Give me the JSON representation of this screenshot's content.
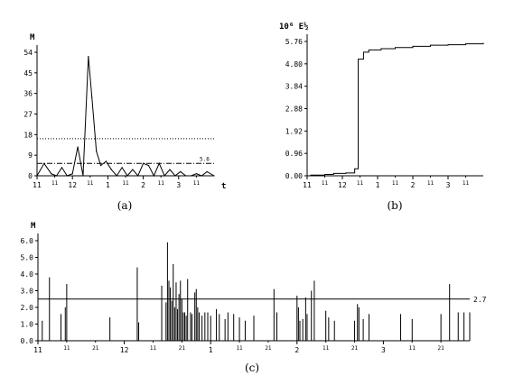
{
  "chart_data": [
    {
      "type": "line",
      "panel_label": "(a)",
      "ylabel": "M",
      "xlabel": "t",
      "ylim": [
        0,
        60
      ],
      "y_ticks": [
        "0",
        "9",
        "18",
        "27",
        "36",
        "45",
        "54"
      ],
      "x_ticks": [
        {
          "label": "11",
          "big": true
        },
        {
          "label": "11",
          "big": false
        },
        {
          "label": "12",
          "big": true
        },
        {
          "label": "11",
          "big": false
        },
        {
          "label": "1",
          "big": true
        },
        {
          "label": "11",
          "big": false
        },
        {
          "label": "2",
          "big": true
        },
        {
          "label": "11",
          "big": false
        },
        {
          "label": "3",
          "big": true
        },
        {
          "label": "11",
          "big": false
        }
      ],
      "xlim": [
        0,
        10
      ],
      "series": [
        {
          "x": [
            0,
            0.4,
            0.8,
            1.1,
            1.4,
            1.7,
            2.0,
            2.3,
            2.6,
            2.9,
            3.1,
            3.35,
            3.6,
            3.9,
            4.2,
            4.5,
            4.8,
            5.1,
            5.4,
            5.7,
            6.0,
            6.3,
            6.6,
            6.9,
            7.2,
            7.5,
            7.8,
            8.1,
            8.4,
            8.7,
            9.0,
            9.3,
            9.6,
            10.0
          ],
          "y": [
            0,
            6,
            1,
            0,
            4,
            0,
            1,
            14,
            0,
            58,
            38,
            12,
            5,
            7,
            3,
            0,
            4,
            0,
            3,
            0,
            6,
            5,
            0,
            6,
            0,
            3,
            0,
            2,
            0,
            0,
            1,
            0,
            2,
            0
          ]
        }
      ],
      "ref_lines": [
        {
          "y": 18,
          "style": "dotted"
        },
        {
          "y": 6,
          "style": "dashdot",
          "label": "5.6"
        }
      ]
    },
    {
      "type": "line",
      "panel_label": "(b)",
      "ylabel": "10⁶ E½",
      "ylim": [
        0,
        5.76
      ],
      "y_ticks": [
        "0.00",
        "0.96",
        "1.92",
        "2.88",
        "3.84",
        "4.80",
        "5.76"
      ],
      "x_ticks": [
        {
          "label": "11",
          "big": true
        },
        {
          "label": "11",
          "big": false
        },
        {
          "label": "12",
          "big": true
        },
        {
          "label": "11",
          "big": false
        },
        {
          "label": "1",
          "big": true
        },
        {
          "label": "11",
          "big": false
        },
        {
          "label": "2",
          "big": true
        },
        {
          "label": "11",
          "big": false
        },
        {
          "label": "3",
          "big": true
        },
        {
          "label": "11",
          "big": false
        }
      ],
      "xlim": [
        0,
        10
      ],
      "series": [
        {
          "step": true,
          "x": [
            0,
            0.2,
            1.0,
            1.5,
            2.2,
            2.7,
            2.9,
            3.2,
            3.5,
            4.2,
            5.0,
            6.0,
            7.0,
            8.0,
            9.0,
            10.0
          ],
          "y": [
            0,
            0.03,
            0.06,
            0.1,
            0.12,
            0.3,
            5.0,
            5.3,
            5.4,
            5.45,
            5.5,
            5.55,
            5.6,
            5.62,
            5.66,
            5.7
          ]
        }
      ]
    },
    {
      "type": "bar",
      "panel_label": "(c)",
      "ylabel": "M",
      "ylim": [
        0,
        6.0
      ],
      "y_ticks": [
        "0.0",
        "1.0",
        "2.0",
        "3.0",
        "4.0",
        "5.0",
        "6.0"
      ],
      "x_ticks": [
        {
          "label": "11",
          "big": true
        },
        {
          "label": "11",
          "big": false
        },
        {
          "label": "21",
          "big": false
        },
        {
          "label": "12",
          "big": true
        },
        {
          "label": "11",
          "big": false
        },
        {
          "label": "21",
          "big": false
        },
        {
          "label": "1",
          "big": true
        },
        {
          "label": "11",
          "big": false
        },
        {
          "label": "21",
          "big": false
        },
        {
          "label": "2",
          "big": true
        },
        {
          "label": "11",
          "big": false
        },
        {
          "label": "21",
          "big": false
        },
        {
          "label": "3",
          "big": true
        },
        {
          "label": "11",
          "big": false
        },
        {
          "label": "21",
          "big": false
        }
      ],
      "xlim": [
        0,
        15
      ],
      "ref_lines": [
        {
          "y": 2.5,
          "label": "2.7"
        }
      ],
      "x": [
        0.15,
        0.4,
        0.8,
        0.95,
        1.0,
        2.5,
        3.45,
        3.5,
        4.3,
        4.45,
        4.5,
        4.55,
        4.6,
        4.65,
        4.7,
        4.75,
        4.8,
        4.85,
        4.9,
        4.95,
        5.0,
        5.05,
        5.1,
        5.15,
        5.2,
        5.3,
        5.35,
        5.45,
        5.5,
        5.55,
        5.6,
        5.7,
        5.8,
        5.9,
        6.0,
        6.2,
        6.3,
        6.5,
        6.6,
        6.8,
        7.0,
        7.2,
        7.5,
        8.2,
        8.3,
        9.0,
        9.05,
        9.1,
        9.2,
        9.3,
        9.35,
        9.5,
        9.6,
        10.0,
        10.1,
        10.3,
        11.0,
        11.1,
        11.15,
        11.3,
        11.5,
        12.6,
        13.0,
        14.0,
        14.3,
        14.6,
        14.8,
        15.0
      ],
      "values": [
        1.2,
        3.8,
        1.6,
        2.0,
        3.4,
        1.4,
        4.4,
        1.1,
        3.3,
        2.3,
        5.9,
        3.6,
        3.2,
        2.4,
        4.6,
        2.0,
        3.5,
        1.9,
        2.8,
        3.6,
        2.5,
        1.7,
        1.7,
        1.5,
        3.7,
        1.7,
        1.6,
        2.9,
        3.1,
        2.0,
        1.7,
        1.5,
        1.7,
        1.7,
        1.5,
        1.9,
        1.6,
        1.3,
        1.7,
        1.6,
        1.4,
        1.2,
        1.5,
        3.1,
        1.7,
        2.7,
        2.0,
        1.2,
        1.3,
        2.6,
        1.6,
        3.0,
        3.6,
        1.8,
        1.4,
        1.2,
        1.2,
        2.2,
        2.0,
        1.3,
        1.6,
        1.6,
        1.3,
        1.6,
        3.4,
        1.7,
        1.7,
        1.7
      ]
    }
  ]
}
